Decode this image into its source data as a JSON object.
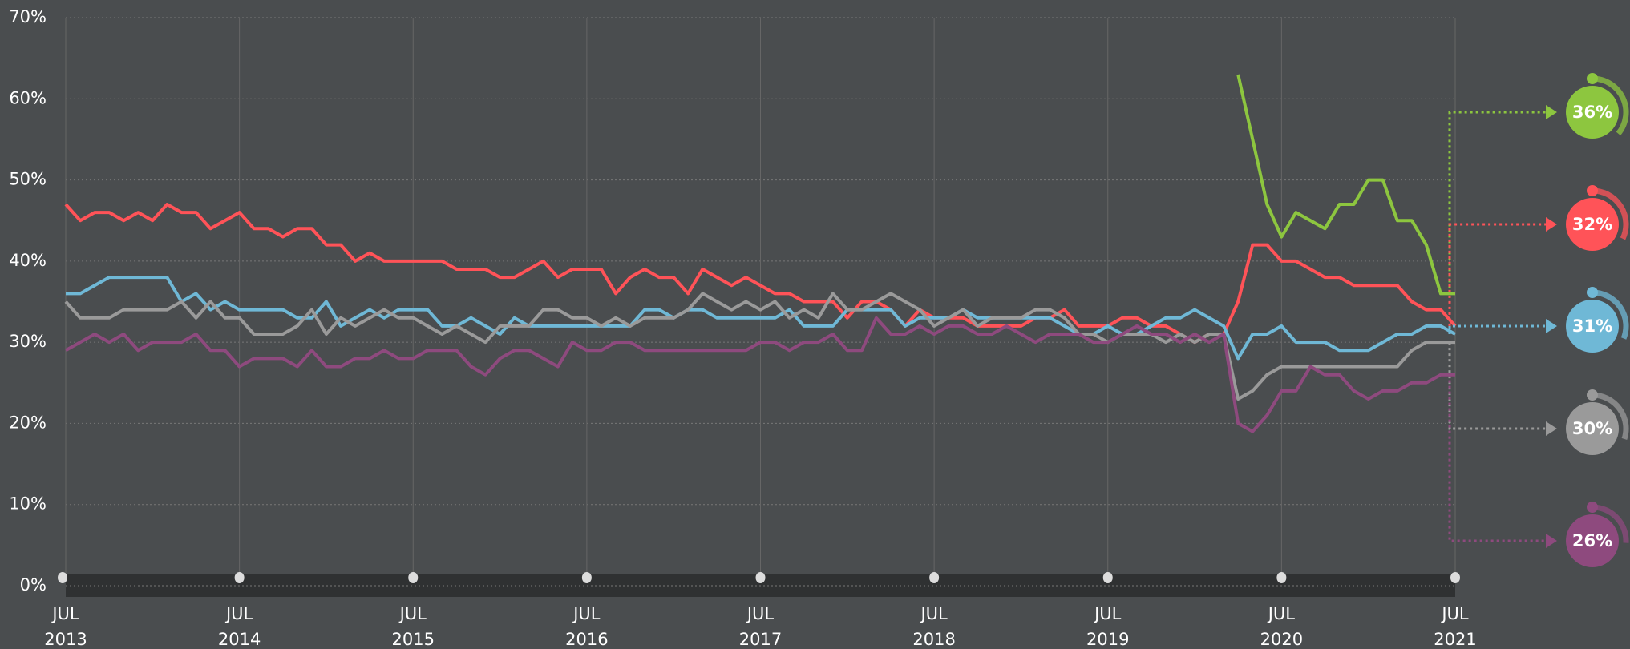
{
  "chart_data": {
    "type": "line",
    "x": [
      "2013-07",
      "2013-08",
      "2013-09",
      "2013-10",
      "2013-11",
      "2013-12",
      "2014-01",
      "2014-02",
      "2014-03",
      "2014-04",
      "2014-05",
      "2014-06",
      "2014-07",
      "2014-08",
      "2014-09",
      "2014-10",
      "2014-11",
      "2014-12",
      "2015-01",
      "2015-02",
      "2015-03",
      "2015-04",
      "2015-05",
      "2015-06",
      "2015-07",
      "2015-08",
      "2015-09",
      "2015-10",
      "2015-11",
      "2015-12",
      "2016-01",
      "2016-02",
      "2016-03",
      "2016-04",
      "2016-05",
      "2016-06",
      "2016-07",
      "2016-08",
      "2016-09",
      "2016-10",
      "2016-11",
      "2016-12",
      "2017-01",
      "2017-02",
      "2017-03",
      "2017-04",
      "2017-05",
      "2017-06",
      "2017-07",
      "2017-08",
      "2017-09",
      "2017-10",
      "2017-11",
      "2017-12",
      "2018-01",
      "2018-02",
      "2018-03",
      "2018-04",
      "2018-05",
      "2018-06",
      "2018-07",
      "2018-08",
      "2018-09",
      "2018-10",
      "2018-11",
      "2018-12",
      "2019-01",
      "2019-02",
      "2019-03",
      "2019-04",
      "2019-05",
      "2019-06",
      "2019-07",
      "2019-08",
      "2019-09",
      "2019-10",
      "2019-11",
      "2019-12",
      "2020-01",
      "2020-02",
      "2020-03",
      "2020-04",
      "2020-05",
      "2020-06",
      "2020-07",
      "2020-08",
      "2020-09",
      "2020-10",
      "2020-11",
      "2020-12",
      "2021-01",
      "2021-02",
      "2021-03",
      "2021-04",
      "2021-05",
      "2021-06",
      "2021-07"
    ],
    "series": [
      {
        "color": "#8dc63f",
        "value_label": "36%",
        "values": [
          null,
          null,
          null,
          null,
          null,
          null,
          null,
          null,
          null,
          null,
          null,
          null,
          null,
          null,
          null,
          null,
          null,
          null,
          null,
          null,
          null,
          null,
          null,
          null,
          null,
          null,
          null,
          null,
          null,
          null,
          null,
          null,
          null,
          null,
          null,
          null,
          null,
          null,
          null,
          null,
          null,
          null,
          null,
          null,
          null,
          null,
          null,
          null,
          null,
          null,
          null,
          null,
          null,
          null,
          null,
          null,
          null,
          null,
          null,
          null,
          null,
          null,
          null,
          null,
          null,
          null,
          null,
          null,
          null,
          null,
          null,
          null,
          null,
          null,
          null,
          null,
          null,
          null,
          null,
          null,
          null,
          63,
          55,
          47,
          43,
          46,
          45,
          44,
          47,
          47,
          50,
          50,
          45,
          45,
          42,
          36,
          36
        ]
      },
      {
        "color": "#ff5358",
        "value_label": "32%",
        "values": [
          47,
          45,
          46,
          46,
          45,
          46,
          45,
          47,
          46,
          46,
          44,
          45,
          46,
          44,
          44,
          43,
          44,
          44,
          42,
          42,
          40,
          41,
          40,
          40,
          40,
          40,
          40,
          39,
          39,
          39,
          38,
          38,
          39,
          40,
          38,
          39,
          39,
          39,
          36,
          38,
          39,
          38,
          38,
          36,
          39,
          38,
          37,
          38,
          37,
          36,
          36,
          35,
          35,
          35,
          33,
          35,
          35,
          34,
          32,
          34,
          33,
          33,
          33,
          32,
          32,
          32,
          32,
          33,
          33,
          34,
          32,
          32,
          32,
          33,
          33,
          32,
          32,
          31,
          30,
          31,
          31,
          35,
          42,
          42,
          40,
          40,
          39,
          38,
          38,
          37,
          37,
          37,
          37,
          35,
          34,
          34,
          32
        ]
      },
      {
        "color": "#6fb8d6",
        "value_label": "31%",
        "values": [
          36,
          36,
          37,
          38,
          38,
          38,
          38,
          38,
          35,
          36,
          34,
          35,
          34,
          34,
          34,
          34,
          33,
          33,
          35,
          32,
          33,
          34,
          33,
          34,
          34,
          34,
          32,
          32,
          33,
          32,
          31,
          33,
          32,
          32,
          32,
          32,
          32,
          32,
          32,
          32,
          34,
          34,
          33,
          34,
          34,
          33,
          33,
          33,
          33,
          33,
          34,
          32,
          32,
          32,
          34,
          34,
          34,
          34,
          32,
          33,
          33,
          33,
          34,
          33,
          33,
          33,
          33,
          33,
          33,
          32,
          31,
          31,
          32,
          31,
          31,
          32,
          33,
          33,
          34,
          33,
          32,
          28,
          31,
          31,
          32,
          30,
          30,
          30,
          29,
          29,
          29,
          30,
          31,
          31,
          32,
          32,
          31
        ]
      },
      {
        "color": "#9a9a9a",
        "value_label": "30%",
        "values": [
          35,
          33,
          33,
          33,
          34,
          34,
          34,
          34,
          35,
          33,
          35,
          33,
          33,
          31,
          31,
          31,
          32,
          34,
          31,
          33,
          32,
          33,
          34,
          33,
          33,
          32,
          31,
          32,
          31,
          30,
          32,
          32,
          32,
          34,
          34,
          33,
          33,
          32,
          33,
          32,
          33,
          33,
          33,
          34,
          36,
          35,
          34,
          35,
          34,
          35,
          33,
          34,
          33,
          36,
          34,
          34,
          35,
          36,
          35,
          34,
          32,
          33,
          34,
          32,
          33,
          33,
          33,
          34,
          34,
          33,
          31,
          31,
          30,
          31,
          31,
          31,
          30,
          31,
          30,
          31,
          31,
          23,
          24,
          26,
          27,
          27,
          27,
          27,
          27,
          27,
          27,
          27,
          27,
          29,
          30,
          30,
          30
        ]
      },
      {
        "color": "#8e4a7e",
        "value_label": "26%",
        "values": [
          29,
          30,
          31,
          30,
          31,
          29,
          30,
          30,
          30,
          31,
          29,
          29,
          27,
          28,
          28,
          28,
          27,
          29,
          27,
          27,
          28,
          28,
          29,
          28,
          28,
          29,
          29,
          29,
          27,
          26,
          28,
          29,
          29,
          28,
          27,
          30,
          29,
          29,
          30,
          30,
          29,
          29,
          29,
          29,
          29,
          29,
          29,
          29,
          30,
          30,
          29,
          30,
          30,
          31,
          29,
          29,
          33,
          31,
          31,
          32,
          31,
          32,
          32,
          31,
          31,
          32,
          31,
          30,
          31,
          31,
          31,
          30,
          30,
          31,
          32,
          31,
          31,
          30,
          31,
          30,
          31,
          20,
          19,
          21,
          24,
          24,
          27,
          26,
          26,
          24,
          23,
          24,
          24,
          25,
          25,
          26,
          26
        ]
      }
    ],
    "ylim": [
      0,
      70
    ],
    "yticks": [
      {
        "value": 0,
        "label": "0%"
      },
      {
        "value": 10,
        "label": "10%"
      },
      {
        "value": 20,
        "label": "20%"
      },
      {
        "value": 30,
        "label": "30%"
      },
      {
        "value": 40,
        "label": "40%"
      },
      {
        "value": 50,
        "label": "50%"
      },
      {
        "value": 60,
        "label": "60%"
      },
      {
        "value": 70,
        "label": "70%"
      }
    ],
    "xlim": [
      "2013-07",
      "2021-07"
    ],
    "xticks": [
      {
        "value": "2013-07",
        "label": "JUL 2013"
      },
      {
        "value": "2014-07",
        "label": "JUL 2014"
      },
      {
        "value": "2015-07",
        "label": "JUL 2015"
      },
      {
        "value": "2016-07",
        "label": "JUL 2016"
      },
      {
        "value": "2017-07",
        "label": "JUL 2017"
      },
      {
        "value": "2018-07",
        "label": "JUL 2018"
      },
      {
        "value": "2019-07",
        "label": "JUL 2019"
      },
      {
        "value": "2020-07",
        "label": "JUL 2020"
      },
      {
        "value": "2021-07",
        "label": "JUL 2021"
      }
    ],
    "grid": true
  }
}
